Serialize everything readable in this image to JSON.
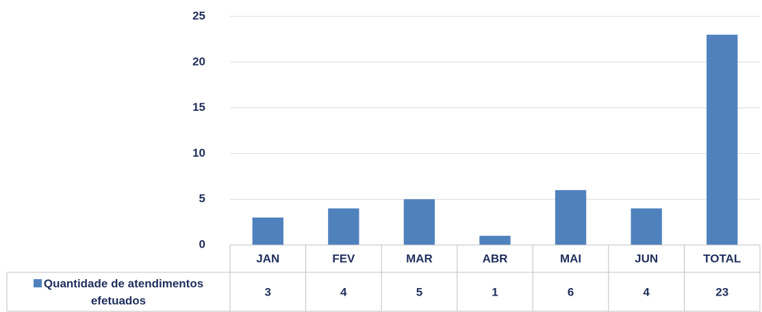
{
  "chart_data": {
    "type": "bar",
    "categories": [
      "JAN",
      "FEV",
      "MAR",
      "ABR",
      "MAI",
      "JUN",
      "TOTAL"
    ],
    "series": [
      {
        "name": "Quantidade de atendimentos efetuados",
        "color": "#4f81bd",
        "values": [
          3,
          4,
          5,
          1,
          6,
          4,
          23
        ]
      }
    ],
    "ylim": [
      0,
      25
    ],
    "yticks": [
      0,
      5,
      10,
      15,
      20,
      25
    ],
    "grid": true
  }
}
